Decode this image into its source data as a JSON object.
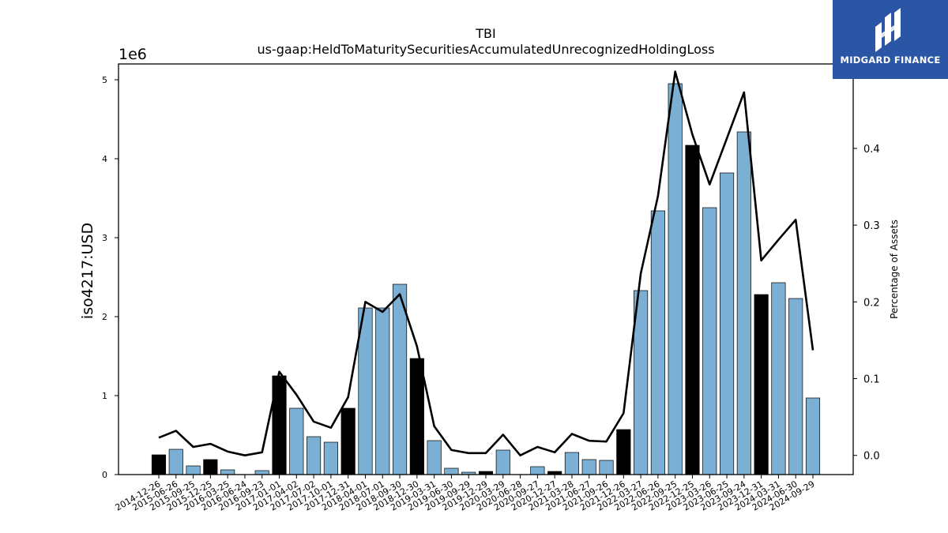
{
  "chart_data": {
    "type": "bar",
    "title": "TBI",
    "subtitle": "us-gaap:HeldToMaturitySecuritiesAccumulatedUnrecognizedHoldingLoss",
    "ylabel": "iso4217:USD",
    "y2label": "Percentage of Assets",
    "yscale_label": "1e6",
    "ylim": [
      0,
      5.2
    ],
    "y2lim": [
      -0.025,
      0.51
    ],
    "yticks": [
      "0",
      "1",
      "2",
      "3",
      "4",
      "5"
    ],
    "y2ticks": [
      "0.0",
      "0.1",
      "0.2",
      "0.3",
      "0.4",
      "0.5"
    ],
    "categories": [
      "2014-12-26",
      "2015-06-26",
      "2015-09-25",
      "2015-12-25",
      "2016-03-25",
      "2016-06-24",
      "2016-09-23",
      "2017-01-01",
      "2017-04-02",
      "2017-07-02",
      "2017-10-01",
      "2017-12-31",
      "2018-04-01",
      "2018-07-01",
      "2018-09-30",
      "2018-12-30",
      "2019-03-31",
      "2019-06-30",
      "2019-09-29",
      "2019-12-29",
      "2020-03-29",
      "2020-06-28",
      "2020-09-27",
      "2020-12-27",
      "2021-03-28",
      "2021-06-27",
      "2021-09-26",
      "2021-12-26",
      "2022-03-27",
      "2022-06-26",
      "2022-09-25",
      "2022-12-25",
      "2023-03-26",
      "2023-06-25",
      "2023-09-24",
      "2023-12-31",
      "2024-03-31",
      "2024-06-30",
      "2024-09-29"
    ],
    "values": [
      0.25,
      0.32,
      0.11,
      0.19,
      0.06,
      0.0,
      0.05,
      1.25,
      0.84,
      0.48,
      0.41,
      0.84,
      2.11,
      2.11,
      2.41,
      1.47,
      0.43,
      0.08,
      0.03,
      0.04,
      0.31,
      0.0,
      0.1,
      0.04,
      0.28,
      0.19,
      0.18,
      0.57,
      2.33,
      3.34,
      4.95,
      4.17,
      3.38,
      3.82,
      4.34,
      2.28,
      2.43,
      2.23,
      0.97
    ],
    "highlight": [
      true,
      false,
      false,
      true,
      false,
      false,
      false,
      true,
      false,
      false,
      false,
      true,
      false,
      false,
      false,
      true,
      false,
      false,
      false,
      true,
      false,
      false,
      false,
      true,
      false,
      false,
      false,
      true,
      false,
      false,
      false,
      true,
      false,
      false,
      false,
      true,
      false,
      false,
      false
    ],
    "pct_assets": [
      0.023,
      0.032,
      0.011,
      0.015,
      0.005,
      0.0,
      0.004,
      0.109,
      0.079,
      0.044,
      0.036,
      0.076,
      0.2,
      0.187,
      0.21,
      0.142,
      0.038,
      0.007,
      0.003,
      0.003,
      0.027,
      0.0,
      0.011,
      0.004,
      0.028,
      0.019,
      0.018,
      0.055,
      0.237,
      0.338,
      0.5,
      0.418,
      0.353,
      0.413,
      0.473,
      0.254,
      0.281,
      0.307,
      0.137
    ],
    "colors": {
      "bar": "#7bafd4",
      "highlight_bar": "#000000",
      "line": "#000000"
    }
  },
  "logo": {
    "text": "MIDGARD FINANCE",
    "background": "#2b56a6"
  }
}
